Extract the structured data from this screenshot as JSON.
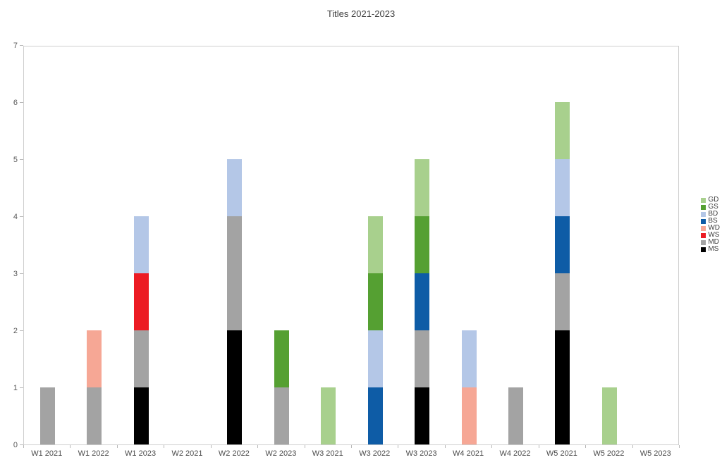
{
  "chart_data": {
    "type": "bar",
    "stacked": true,
    "title": "Titles 2021-2023",
    "categories": [
      "W1 2021",
      "W1 2022",
      "W1 2023",
      "W2 2021",
      "W2 2022",
      "W2 2023",
      "W3 2021",
      "W3 2022",
      "W3 2023",
      "W4 2021",
      "W4 2022",
      "W5 2021",
      "W5 2022",
      "W5 2023"
    ],
    "series": [
      {
        "name": "MS",
        "color": "#000000",
        "values": [
          0,
          0,
          1,
          0,
          2,
          0,
          0,
          0,
          1,
          0,
          0,
          2,
          0,
          0
        ]
      },
      {
        "name": "MD",
        "color": "#a3a3a3",
        "values": [
          1,
          1,
          1,
          0,
          2,
          1,
          0,
          0,
          1,
          0,
          1,
          1,
          0,
          0
        ]
      },
      {
        "name": "WS",
        "color": "#ec1b23",
        "values": [
          0,
          0,
          1,
          0,
          0,
          0,
          0,
          0,
          0,
          0,
          0,
          0,
          0,
          0
        ]
      },
      {
        "name": "WD",
        "color": "#f6a795",
        "values": [
          0,
          1,
          0,
          0,
          0,
          0,
          0,
          0,
          0,
          1,
          0,
          0,
          0,
          0
        ]
      },
      {
        "name": "BS",
        "color": "#0e5ca6",
        "values": [
          0,
          0,
          0,
          0,
          0,
          0,
          0,
          1,
          1,
          0,
          0,
          1,
          0,
          0
        ]
      },
      {
        "name": "BD",
        "color": "#b4c7e7",
        "values": [
          0,
          0,
          1,
          0,
          1,
          0,
          0,
          1,
          0,
          1,
          0,
          1,
          0,
          0
        ]
      },
      {
        "name": "GS",
        "color": "#55a032",
        "values": [
          0,
          0,
          0,
          0,
          0,
          1,
          0,
          1,
          1,
          0,
          0,
          0,
          0,
          0
        ]
      },
      {
        "name": "GD",
        "color": "#a8d08d",
        "values": [
          0,
          0,
          0,
          0,
          0,
          0,
          1,
          1,
          1,
          0,
          0,
          1,
          1,
          0
        ]
      }
    ],
    "legend": [
      "GD",
      "GS",
      "BD",
      "BS",
      "WD",
      "WS",
      "MD",
      "MS"
    ],
    "legend_position": "right",
    "xlabel": "",
    "ylabel": "",
    "ylim": [
      0,
      7
    ],
    "y_tick_labels": [
      "0",
      "1",
      "2",
      "3",
      "4",
      "5",
      "6",
      "7"
    ],
    "grid": false
  }
}
